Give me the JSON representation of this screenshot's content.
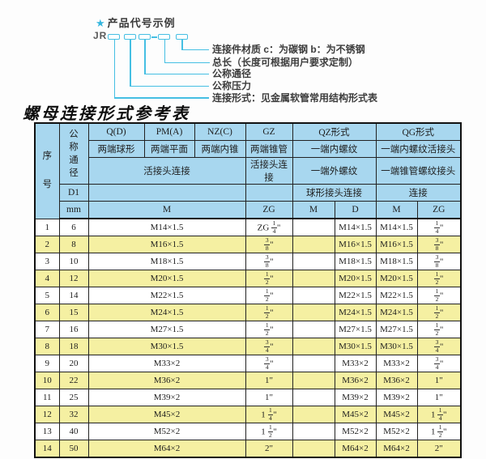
{
  "diagram": {
    "star": "★",
    "title": "产品代号示例",
    "code_prefix": "JR",
    "labels": [
      "连接件材质  c：为碳钢  b：为不锈钢",
      "总长（长度可根据用户要求定制）",
      "公称通径",
      "公称压力",
      "连接形式：见金属软管常用结构形式表"
    ],
    "line_color": "#45bfe3"
  },
  "table": {
    "title": "螺母连接形式参考表",
    "header": {
      "seq": "序号",
      "dn": "公称通径",
      "d1": "D1",
      "mm": "mm",
      "m_label": "M",
      "union_conn": "活接头连接",
      "forms": [
        {
          "code": "Q(D)",
          "ends": "两端球形"
        },
        {
          "code": "PM(A)",
          "ends": "两端平面"
        },
        {
          "code": "NZ(C)",
          "ends": "两端内锥"
        }
      ],
      "gz": {
        "code": "GZ",
        "ends": "两端锥管",
        "conn": "活接头连接",
        "unit": "ZG"
      },
      "qz": {
        "code": "QZ形式",
        "line1": "一端内螺纹",
        "line2": "一端外螺纹",
        "line3": "球形接头连接",
        "unit1": "M",
        "unit2": "D"
      },
      "qg": {
        "code": "QG形式",
        "line1": "一端内螺纹活接头",
        "line2": "一端锥管螺纹接头",
        "line3": "连接",
        "unit1": "M",
        "unit2": "ZG"
      }
    },
    "rows": [
      {
        "no": "1",
        "dn": "6",
        "m": "M14×1.5",
        "gz_zg": "ZG 1/4\"",
        "qz_m": "",
        "qz_d": "M14×1.5",
        "qg_m": "M14×1.5",
        "qg_zg": "1/4\""
      },
      {
        "no": "2",
        "dn": "8",
        "m": "M16×1.5",
        "gz_zg": "3/8\"",
        "qz_m": "",
        "qz_d": "M16×1.5",
        "qg_m": "M16×1.5",
        "qg_zg": "3/8\""
      },
      {
        "no": "3",
        "dn": "10",
        "m": "M18×1.5",
        "gz_zg": "3/8\"",
        "qz_m": "",
        "qz_d": "M18×1.5",
        "qg_m": "M18×1.5",
        "qg_zg": "3/8\""
      },
      {
        "no": "4",
        "dn": "12",
        "m": "M20×1.5",
        "gz_zg": "1/2\"",
        "qz_m": "",
        "qz_d": "M20×1.5",
        "qg_m": "M20×1.5",
        "qg_zg": "1/2\""
      },
      {
        "no": "5",
        "dn": "14",
        "m": "M22×1.5",
        "gz_zg": "1/2\"",
        "qz_m": "",
        "qz_d": "M22×1.5",
        "qg_m": "M22×1.5",
        "qg_zg": "1/2\""
      },
      {
        "no": "6",
        "dn": "15",
        "m": "M24×1.5",
        "gz_zg": "1/2\"",
        "qz_m": "",
        "qz_d": "M24×1.5",
        "qg_m": "M24×1.5",
        "qg_zg": "1/2\""
      },
      {
        "no": "7",
        "dn": "16",
        "m": "M27×1.5",
        "gz_zg": "1/2\"",
        "qz_m": "",
        "qz_d": "M27×1.5",
        "qg_m": "M27×1.5",
        "qg_zg": "1/2\""
      },
      {
        "no": "8",
        "dn": "18",
        "m": "M30×1.5",
        "gz_zg": "3/4\"",
        "qz_m": "",
        "qz_d": "M30×1.5",
        "qg_m": "M30×1.5",
        "qg_zg": "3/4\""
      },
      {
        "no": "9",
        "dn": "20",
        "m": "M33×2",
        "gz_zg": "3/4\"",
        "qz_m": "",
        "qz_d": "M33×2",
        "qg_m": "M33×2",
        "qg_zg": "3/4\""
      },
      {
        "no": "10",
        "dn": "22",
        "m": "M36×2",
        "gz_zg": "1\"",
        "qz_m": "",
        "qz_d": "M36×2",
        "qg_m": "M36×2",
        "qg_zg": "1\""
      },
      {
        "no": "11",
        "dn": "25",
        "m": "M39×2",
        "gz_zg": "1\"",
        "qz_m": "",
        "qz_d": "M39×2",
        "qg_m": "M39×2",
        "qg_zg": "1\""
      },
      {
        "no": "12",
        "dn": "32",
        "m": "M45×2",
        "gz_zg": "1 1/4\"",
        "qz_m": "",
        "qz_d": "M45×2",
        "qg_m": "M45×2",
        "qg_zg": "1 1/4\""
      },
      {
        "no": "13",
        "dn": "40",
        "m": "M52×2",
        "gz_zg": "1 1/2\"",
        "qz_m": "",
        "qz_d": "M52×2",
        "qg_m": "M52×2",
        "qg_zg": "1 1/2\""
      },
      {
        "no": "14",
        "dn": "50",
        "m": "M64×2",
        "gz_zg": "2\"",
        "qz_m": "",
        "qz_d": "M64×2",
        "qg_m": "M64×2",
        "qg_zg": "2\""
      }
    ],
    "colors": {
      "header_bg": "#a8d7ef",
      "row_alt_bg": "#f5f0a2",
      "border": "#222222"
    }
  }
}
